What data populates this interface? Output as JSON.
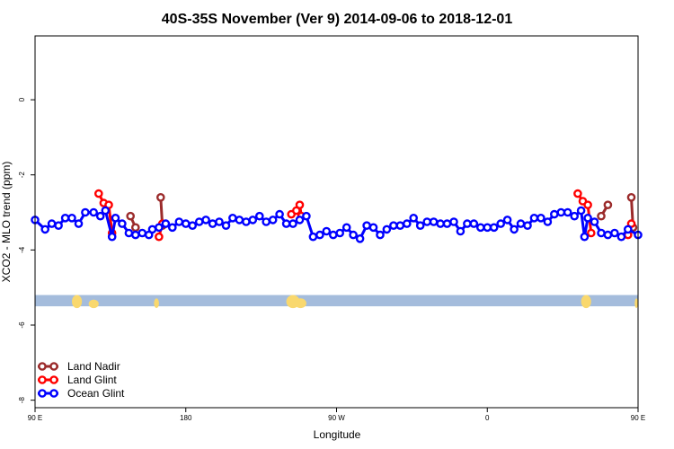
{
  "chart_data": {
    "type": "line",
    "title": "40S-35S November (Ver 9)   2014-09-06 to 2018-12-01",
    "xlabel": "Longitude",
    "ylabel": "XCO2 - MLO trend (ppm)",
    "xlim": [
      90,
      450
    ],
    "ylim": [
      -8.2,
      1.7
    ],
    "x_ticks": [
      {
        "value": 90,
        "label": "90 E"
      },
      {
        "value": 180,
        "label": "180"
      },
      {
        "value": 270,
        "label": "90 W"
      },
      {
        "value": 360,
        "label": "0"
      },
      {
        "value": 450,
        "label": "90 E"
      },
      {
        "value": 540,
        "label": "180"
      }
    ],
    "y_ticks": [
      {
        "value": 0,
        "label": "0"
      },
      {
        "value": -2,
        "label": "-2"
      },
      {
        "value": -4,
        "label": "-4"
      },
      {
        "value": -6,
        "label": "-6"
      },
      {
        "value": -8,
        "label": "-8"
      }
    ],
    "map_strip": {
      "y_top": -5.2,
      "y_bottom": -5.5,
      "ocean_color": "#a4bcdc",
      "land_color": "#f9d86e"
    },
    "legend_position": "bottom-left",
    "series": [
      {
        "name": "Land Nadir",
        "color": "#9b2b2b",
        "segments": [
          [
            [
              147,
              -3.1
            ],
            [
              150,
              -3.4
            ]
          ],
          [
            [
              165,
              -2.6
            ],
            [
              166,
              -3.35
            ]
          ],
          [
            [
              428,
              -3.1
            ],
            [
              432,
              -2.8
            ]
          ],
          [
            [
              446,
              -2.6
            ],
            [
              447,
              -3.4
            ]
          ]
        ]
      },
      {
        "name": "Land Glint",
        "color": "#ff0000",
        "segments": [
          [
            [
              128,
              -2.5
            ],
            [
              131,
              -2.75
            ],
            [
              134,
              -2.8
            ],
            [
              136,
              -3.55
            ]
          ],
          [
            [
              164,
              -3.65
            ],
            [
              166,
              -3.3
            ]
          ],
          [
            [
              243,
              -3.05
            ],
            [
              246,
              -2.95
            ],
            [
              248,
              -2.8
            ],
            [
              249,
              -3.1
            ]
          ],
          [
            [
              414,
              -2.5
            ],
            [
              417,
              -2.7
            ],
            [
              420,
              -2.8
            ],
            [
              422,
              -3.55
            ]
          ],
          [
            [
              444,
              -3.6
            ],
            [
              446,
              -3.3
            ]
          ]
        ]
      },
      {
        "name": "Ocean Glint",
        "color": "#0000ff",
        "segments": [
          [
            [
              90,
              -3.2
            ],
            [
              96,
              -3.45
            ],
            [
              100,
              -3.3
            ],
            [
              104,
              -3.35
            ],
            [
              108,
              -3.15
            ],
            [
              112,
              -3.15
            ],
            [
              116,
              -3.3
            ],
            [
              120,
              -3.0
            ],
            [
              125,
              -3.0
            ],
            [
              129,
              -3.1
            ],
            [
              132,
              -2.95
            ],
            [
              136,
              -3.65
            ],
            [
              138,
              -3.15
            ],
            [
              142,
              -3.3
            ],
            [
              146,
              -3.55
            ],
            [
              150,
              -3.6
            ],
            [
              154,
              -3.55
            ],
            [
              158,
              -3.6
            ],
            [
              160,
              -3.45
            ],
            [
              164,
              -3.4
            ],
            [
              168,
              -3.3
            ],
            [
              172,
              -3.4
            ],
            [
              176,
              -3.25
            ],
            [
              180,
              -3.3
            ],
            [
              184,
              -3.35
            ],
            [
              188,
              -3.25
            ],
            [
              192,
              -3.2
            ],
            [
              196,
              -3.3
            ],
            [
              200,
              -3.25
            ],
            [
              204,
              -3.35
            ],
            [
              208,
              -3.15
            ],
            [
              212,
              -3.2
            ],
            [
              216,
              -3.25
            ],
            [
              220,
              -3.2
            ],
            [
              224,
              -3.1
            ],
            [
              228,
              -3.25
            ],
            [
              232,
              -3.2
            ],
            [
              236,
              -3.05
            ],
            [
              240,
              -3.3
            ],
            [
              244,
              -3.3
            ],
            [
              248,
              -3.2
            ],
            [
              252,
              -3.1
            ],
            [
              256,
              -3.65
            ],
            [
              260,
              -3.6
            ],
            [
              264,
              -3.5
            ],
            [
              268,
              -3.6
            ],
            [
              272,
              -3.55
            ],
            [
              276,
              -3.4
            ],
            [
              280,
              -3.6
            ],
            [
              284,
              -3.7
            ],
            [
              288,
              -3.35
            ],
            [
              292,
              -3.4
            ],
            [
              296,
              -3.6
            ],
            [
              300,
              -3.45
            ],
            [
              304,
              -3.35
            ],
            [
              308,
              -3.35
            ],
            [
              312,
              -3.3
            ],
            [
              316,
              -3.15
            ],
            [
              320,
              -3.35
            ],
            [
              324,
              -3.25
            ],
            [
              328,
              -3.25
            ],
            [
              332,
              -3.3
            ],
            [
              336,
              -3.3
            ],
            [
              340,
              -3.25
            ],
            [
              344,
              -3.5
            ],
            [
              348,
              -3.3
            ],
            [
              352,
              -3.3
            ],
            [
              356,
              -3.4
            ],
            [
              360,
              -3.4
            ],
            [
              364,
              -3.4
            ],
            [
              368,
              -3.3
            ],
            [
              372,
              -3.2
            ],
            [
              376,
              -3.45
            ],
            [
              380,
              -3.3
            ],
            [
              384,
              -3.35
            ],
            [
              388,
              -3.15
            ],
            [
              392,
              -3.15
            ],
            [
              396,
              -3.25
            ],
            [
              400,
              -3.05
            ],
            [
              404,
              -3.0
            ],
            [
              408,
              -3.0
            ],
            [
              412,
              -3.1
            ],
            [
              416,
              -2.95
            ],
            [
              418,
              -3.65
            ],
            [
              420,
              -3.15
            ],
            [
              424,
              -3.25
            ],
            [
              428,
              -3.55
            ],
            [
              432,
              -3.6
            ],
            [
              436,
              -3.55
            ],
            [
              440,
              -3.65
            ],
            [
              444,
              -3.45
            ],
            [
              450,
              -3.6
            ]
          ]
        ]
      }
    ]
  }
}
